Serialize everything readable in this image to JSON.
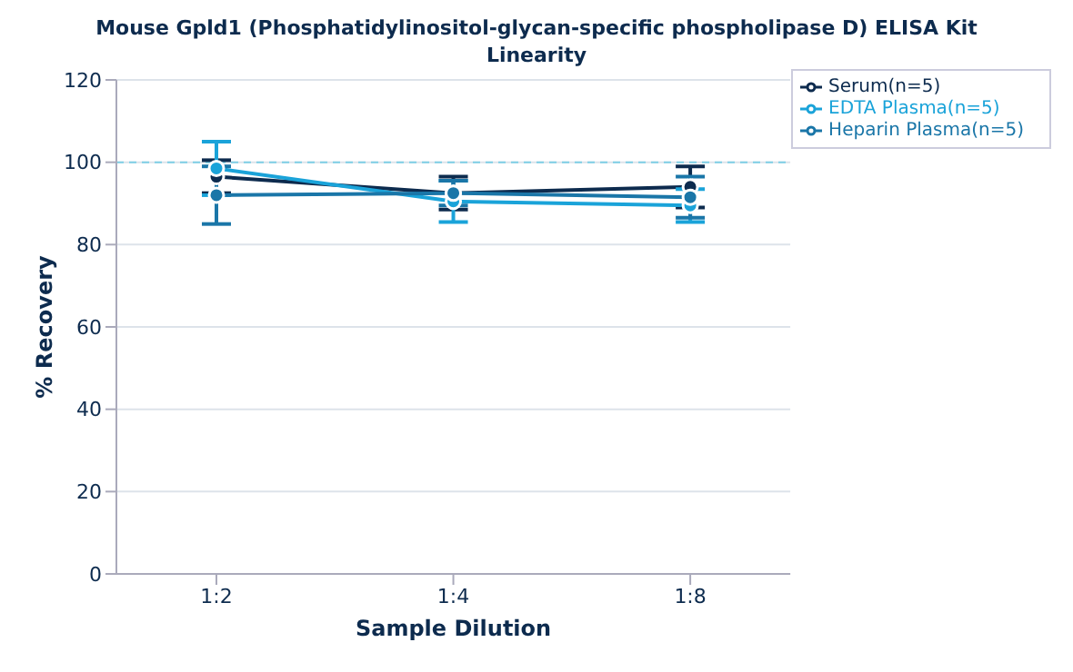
{
  "chart_data": {
    "type": "line",
    "title": "Mouse Gpld1 (Phosphatidylinositol-glycan-specific phospholipase D) ELISA Kit",
    "subtitle": "Linearity",
    "xlabel": "Sample Dilution",
    "ylabel": "% Recovery",
    "categories": [
      "1:2",
      "1:4",
      "1:8"
    ],
    "series": [
      {
        "name": "Serum(n=5)",
        "color": "#0d2b4e",
        "values": [
          96.5,
          92.5,
          94
        ],
        "errors": [
          4,
          4,
          5
        ]
      },
      {
        "name": "EDTA Plasma(n=5)",
        "color": "#1aa3d9",
        "values": [
          98.5,
          90.5,
          89.5
        ],
        "errors": [
          6.5,
          5,
          4
        ]
      },
      {
        "name": "Heparin Plasma(n=5)",
        "color": "#1a76a8",
        "values": [
          92,
          92.5,
          91.5
        ],
        "errors": [
          7,
          3,
          5
        ]
      }
    ],
    "ylim": [
      0,
      120
    ],
    "yticks": [
      0,
      20,
      40,
      60,
      80,
      100,
      120
    ],
    "grid": "y",
    "legend": "top right",
    "marker": "circle",
    "line_style": "solid",
    "ref_lines": [
      {
        "axis": "y",
        "value": 100,
        "color": "#7fcfe6",
        "line_style": "dashed"
      }
    ]
  }
}
